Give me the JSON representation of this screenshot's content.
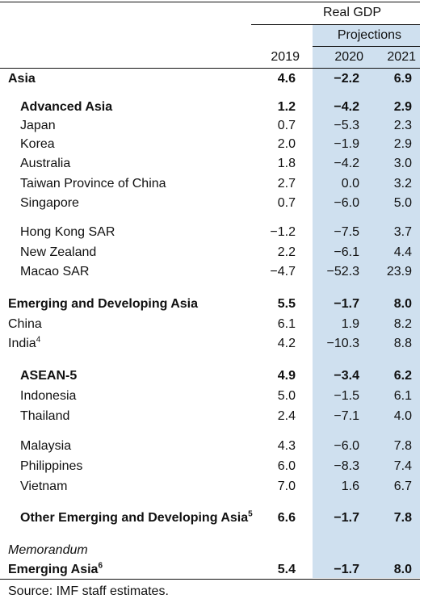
{
  "header": {
    "group_title": "Real GDP",
    "projections_label": "Projections",
    "years": [
      "2019",
      "2020",
      "2021"
    ]
  },
  "rows": [
    {
      "label": "Asia",
      "v2019": "4.6",
      "v2020": "−2.2",
      "v2021": "6.9"
    },
    {
      "label": "Advanced Asia",
      "v2019": "1.2",
      "v2020": "−4.2",
      "v2021": "2.9"
    },
    {
      "label": "Japan",
      "v2019": "0.7",
      "v2020": "−5.3",
      "v2021": "2.3"
    },
    {
      "label": "Korea",
      "v2019": "2.0",
      "v2020": "−1.9",
      "v2021": "2.9"
    },
    {
      "label": "Australia",
      "v2019": "1.8",
      "v2020": "−4.2",
      "v2021": "3.0"
    },
    {
      "label": "Taiwan Province of China",
      "v2019": "2.7",
      "v2020": "0.0",
      "v2021": "3.2"
    },
    {
      "label": "Singapore",
      "v2019": "0.7",
      "v2020": "−6.0",
      "v2021": "5.0"
    },
    {
      "label": "Hong Kong SAR",
      "v2019": "−1.2",
      "v2020": "−7.5",
      "v2021": "3.7"
    },
    {
      "label": "New Zealand",
      "v2019": "2.2",
      "v2020": "−6.1",
      "v2021": "4.4"
    },
    {
      "label": "Macao SAR",
      "v2019": "−4.7",
      "v2020": "−52.3",
      "v2021": "23.9"
    },
    {
      "label": "Emerging and Developing Asia",
      "v2019": "5.5",
      "v2020": "−1.7",
      "v2021": "8.0"
    },
    {
      "label": "China",
      "v2019": "6.1",
      "v2020": "1.9",
      "v2021": "8.2"
    },
    {
      "label": "India",
      "sup": "4",
      "v2019": "4.2",
      "v2020": "−10.3",
      "v2021": "8.8"
    },
    {
      "label": "ASEAN-5",
      "v2019": "4.9",
      "v2020": "−3.4",
      "v2021": "6.2"
    },
    {
      "label": "Indonesia",
      "v2019": "5.0",
      "v2020": "−1.5",
      "v2021": "6.1"
    },
    {
      "label": "Thailand",
      "v2019": "2.4",
      "v2020": "−7.1",
      "v2021": "4.0"
    },
    {
      "label": "Malaysia",
      "v2019": "4.3",
      "v2020": "−6.0",
      "v2021": "7.8"
    },
    {
      "label": "Philippines",
      "v2019": "6.0",
      "v2020": "−8.3",
      "v2021": "7.4"
    },
    {
      "label": "Vietnam",
      "v2019": "7.0",
      "v2020": "1.6",
      "v2021": "6.7"
    },
    {
      "label": "Other Emerging and Developing Asia",
      "sup": "5",
      "v2019": "6.6",
      "v2020": "−1.7",
      "v2021": "7.8"
    },
    {
      "label": "Emerging Asia",
      "sup": "6",
      "v2019": "5.4",
      "v2020": "−1.7",
      "v2021": "8.0"
    }
  ],
  "memorandum_label": "Memorandum",
  "source_note": "Source: IMF staff estimates.",
  "colors": {
    "projection_band": "#cfe0ef"
  }
}
